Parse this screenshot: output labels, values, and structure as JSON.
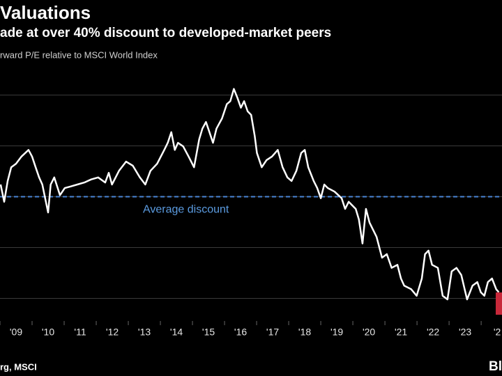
{
  "chart_data": {
    "type": "line",
    "title": "Valuations",
    "subtitle": "ade at over 40% discount to developed-market peers",
    "note": "rward P/E relative to MSCI World Index",
    "source": "rg, MSCI",
    "brand": "Bl",
    "color": "#ffffff",
    "grid": true,
    "xlim": [
      2008.5,
      2024.15
    ],
    "ylim": [
      0.5,
      1.0
    ],
    "yticks": [
      0.55,
      0.65,
      0.75,
      0.85,
      0.95
    ],
    "xticks": [
      {
        "value": 2009,
        "label": "'09"
      },
      {
        "value": 2010,
        "label": "'10"
      },
      {
        "value": 2011,
        "label": "'11"
      },
      {
        "value": 2012,
        "label": "'12"
      },
      {
        "value": 2013,
        "label": "'13"
      },
      {
        "value": 2014,
        "label": "'14"
      },
      {
        "value": 2015,
        "label": "'15"
      },
      {
        "value": 2016,
        "label": "'16"
      },
      {
        "value": 2017,
        "label": "'17"
      },
      {
        "value": 2018,
        "label": "'18"
      },
      {
        "value": 2019,
        "label": "'19"
      },
      {
        "value": 2020,
        "label": "'20"
      },
      {
        "value": 2021,
        "label": "'21"
      },
      {
        "value": 2022,
        "label": "'22"
      },
      {
        "value": 2023,
        "label": "'23"
      },
      {
        "value": 2024,
        "label": "'2"
      }
    ],
    "annotations": [
      {
        "label": "Average discount",
        "value": 0.75,
        "color": "#4a86d8"
      }
    ],
    "x": [
      2008.52,
      2008.63,
      2008.74,
      2008.85,
      2009.0,
      2009.17,
      2009.39,
      2009.5,
      2009.61,
      2009.72,
      2009.82,
      2009.93,
      2010.0,
      2010.08,
      2010.19,
      2010.37,
      2010.52,
      2010.69,
      2010.91,
      2011.13,
      2011.34,
      2011.56,
      2011.78,
      2011.89,
      2011.99,
      2012.21,
      2012.43,
      2012.64,
      2012.86,
      2013.03,
      2013.19,
      2013.4,
      2013.62,
      2013.73,
      2013.84,
      2013.95,
      2014.05,
      2014.21,
      2014.38,
      2014.55,
      2014.71,
      2014.81,
      2014.92,
      2015.03,
      2015.14,
      2015.25,
      2015.42,
      2015.57,
      2015.68,
      2015.79,
      2015.9,
      2016.01,
      2016.11,
      2016.22,
      2016.33,
      2016.44,
      2016.51,
      2016.66,
      2016.81,
      2016.98,
      2017.16,
      2017.31,
      2017.46,
      2017.59,
      2017.74,
      2017.89,
      2018.0,
      2018.11,
      2018.28,
      2018.39,
      2018.5,
      2018.61,
      2018.72,
      2018.93,
      2019.15,
      2019.26,
      2019.37,
      2019.59,
      2019.69,
      2019.8,
      2019.91,
      2020.02,
      2020.24,
      2020.41,
      2020.56,
      2020.71,
      2020.89,
      2021.0,
      2021.1,
      2021.32,
      2021.49,
      2021.65,
      2021.75,
      2021.86,
      2021.97,
      2022.15,
      2022.3,
      2022.45,
      2022.58,
      2022.73,
      2022.88,
      2023.06,
      2023.23,
      2023.38,
      2023.49,
      2023.6,
      2023.71,
      2023.84,
      2023.97,
      2024.05
    ],
    "values": [
      0.774,
      0.74,
      0.781,
      0.808,
      0.815,
      0.829,
      0.842,
      0.829,
      0.808,
      0.788,
      0.774,
      0.74,
      0.719,
      0.774,
      0.788,
      0.753,
      0.767,
      0.77,
      0.774,
      0.778,
      0.784,
      0.788,
      0.778,
      0.797,
      0.774,
      0.801,
      0.819,
      0.811,
      0.788,
      0.774,
      0.801,
      0.815,
      0.842,
      0.856,
      0.877,
      0.842,
      0.856,
      0.849,
      0.829,
      0.808,
      0.863,
      0.884,
      0.897,
      0.877,
      0.856,
      0.884,
      0.904,
      0.932,
      0.938,
      0.962,
      0.945,
      0.925,
      0.938,
      0.918,
      0.911,
      0.87,
      0.836,
      0.808,
      0.822,
      0.829,
      0.842,
      0.808,
      0.788,
      0.781,
      0.801,
      0.836,
      0.842,
      0.808,
      0.781,
      0.767,
      0.747,
      0.774,
      0.767,
      0.76,
      0.747,
      0.726,
      0.74,
      0.726,
      0.705,
      0.658,
      0.726,
      0.699,
      0.671,
      0.63,
      0.637,
      0.61,
      0.616,
      0.589,
      0.575,
      0.568,
      0.555,
      0.589,
      0.637,
      0.644,
      0.616,
      0.61,
      0.555,
      0.548,
      0.603,
      0.61,
      0.596,
      0.548,
      0.575,
      0.582,
      0.562,
      0.555,
      0.582,
      0.589,
      0.568,
      0.562
    ]
  }
}
